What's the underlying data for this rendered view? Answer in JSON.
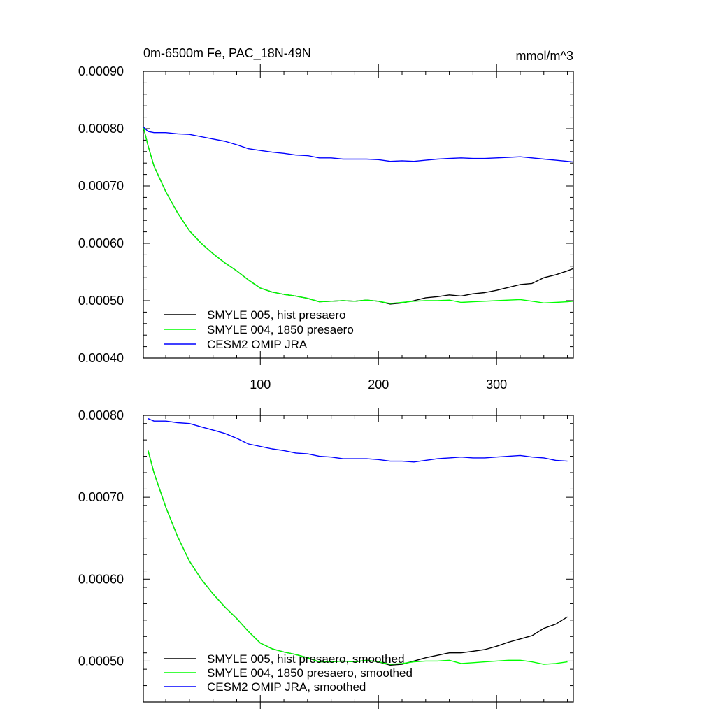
{
  "chart_data": [
    {
      "type": "line",
      "panel": "top",
      "title_left": "0m-6500m Fe, PAC_18N-49N",
      "title_right": "mmol/m^3",
      "xlim": [
        1,
        365
      ],
      "ylim": [
        0.0004,
        0.0009
      ],
      "y_ticks": [
        0.0004,
        0.0005,
        0.0006,
        0.0007,
        0.0008,
        0.0009
      ],
      "y_tick_labels": [
        "0.00040",
        "0.00050",
        "0.00060",
        "0.00070",
        "0.00080",
        "0.00090"
      ],
      "x_ticks": [
        100,
        200,
        300
      ],
      "x_tick_labels": [
        "100",
        "200",
        "300"
      ],
      "series": [
        {
          "name": "SMYLE 005, hist presaero",
          "color": "#000000",
          "x": [
            1,
            5,
            10,
            20,
            30,
            40,
            50,
            60,
            70,
            80,
            90,
            100,
            110,
            120,
            130,
            140,
            150,
            160,
            170,
            180,
            190,
            200,
            210,
            220,
            230,
            240,
            250,
            260,
            270,
            280,
            290,
            300,
            310,
            320,
            330,
            340,
            350,
            360,
            365
          ],
          "y": [
            0.000803,
            0.00077,
            0.000735,
            0.00069,
            0.000653,
            0.000622,
            0.0006,
            0.000582,
            0.000566,
            0.000552,
            0.000536,
            0.000522,
            0.000515,
            0.000511,
            0.000508,
            0.000504,
            0.000498,
            0.000499,
            0.0005,
            0.000499,
            0.000501,
            0.000499,
            0.000494,
            0.000496,
            0.0005,
            0.000505,
            0.000507,
            0.00051,
            0.000508,
            0.000512,
            0.000514,
            0.000518,
            0.000523,
            0.000528,
            0.00053,
            0.00054,
            0.000545,
            0.000552,
            0.000556
          ]
        },
        {
          "name": "SMYLE 004, 1850 presaero",
          "color": "#00ff00",
          "x": [
            1,
            5,
            10,
            20,
            30,
            40,
            50,
            60,
            70,
            80,
            90,
            100,
            110,
            120,
            130,
            140,
            150,
            160,
            170,
            180,
            190,
            200,
            210,
            220,
            230,
            240,
            250,
            260,
            270,
            280,
            290,
            300,
            310,
            320,
            330,
            340,
            350,
            360,
            365
          ],
          "y": [
            0.000803,
            0.00077,
            0.000735,
            0.00069,
            0.000653,
            0.000622,
            0.0006,
            0.000582,
            0.000566,
            0.000552,
            0.000536,
            0.000522,
            0.000515,
            0.000511,
            0.000508,
            0.000504,
            0.000498,
            0.000499,
            0.0005,
            0.000499,
            0.000501,
            0.000499,
            0.000495,
            0.000497,
            0.000499,
            0.0005,
            0.0005,
            0.000501,
            0.000497,
            0.000498,
            0.000499,
            0.0005,
            0.000501,
            0.000502,
            0.000499,
            0.000496,
            0.000497,
            0.000498,
            0.000499
          ]
        },
        {
          "name": "CESM2 OMIP JRA",
          "color": "#0000ff",
          "x": [
            1,
            5,
            10,
            20,
            30,
            40,
            50,
            60,
            70,
            80,
            90,
            100,
            110,
            120,
            130,
            140,
            150,
            160,
            170,
            180,
            190,
            200,
            210,
            220,
            230,
            240,
            250,
            260,
            270,
            280,
            290,
            300,
            310,
            320,
            330,
            340,
            350,
            360,
            365
          ],
          "y": [
            0.000803,
            0.000795,
            0.000793,
            0.000793,
            0.000791,
            0.00079,
            0.000786,
            0.000782,
            0.000778,
            0.000772,
            0.000765,
            0.000762,
            0.000759,
            0.000757,
            0.000754,
            0.000753,
            0.000749,
            0.000749,
            0.000747,
            0.000747,
            0.000747,
            0.000746,
            0.000743,
            0.000744,
            0.000743,
            0.000745,
            0.000747,
            0.000748,
            0.000749,
            0.000748,
            0.000748,
            0.000749,
            0.00075,
            0.000751,
            0.000749,
            0.000747,
            0.000745,
            0.000743,
            0.000742
          ]
        }
      ]
    },
    {
      "type": "line",
      "panel": "bottom",
      "xlim": [
        1,
        365
      ],
      "ylim": [
        0.00045,
        0.0008
      ],
      "y_ticks": [
        0.0005,
        0.0006,
        0.0007,
        0.0008
      ],
      "y_tick_labels": [
        "0.00050",
        "0.00060",
        "0.00070",
        "0.00080"
      ],
      "x_ticks": [
        100,
        200,
        300
      ],
      "series": [
        {
          "name": "SMYLE 005, hist presaero, smoothed",
          "color": "#000000",
          "x": [
            5,
            10,
            20,
            30,
            40,
            50,
            60,
            70,
            80,
            90,
            100,
            110,
            120,
            130,
            140,
            150,
            160,
            170,
            180,
            190,
            200,
            210,
            220,
            230,
            240,
            250,
            260,
            270,
            280,
            290,
            300,
            310,
            320,
            330,
            340,
            350,
            360
          ],
          "y": [
            0.000757,
            0.00073,
            0.000688,
            0.000652,
            0.000622,
            0.0006,
            0.000582,
            0.000566,
            0.000552,
            0.000536,
            0.000522,
            0.000515,
            0.000511,
            0.000508,
            0.000504,
            0.000499,
            0.000499,
            0.0005,
            0.000499,
            0.000501,
            0.000499,
            0.000495,
            0.000496,
            0.0005,
            0.000504,
            0.000507,
            0.00051,
            0.00051,
            0.000512,
            0.000514,
            0.000518,
            0.000523,
            0.000527,
            0.000531,
            0.00054,
            0.000545,
            0.000554
          ]
        },
        {
          "name": "SMYLE 004, 1850 presaero, smoothed",
          "color": "#00ff00",
          "x": [
            5,
            10,
            20,
            30,
            40,
            50,
            60,
            70,
            80,
            90,
            100,
            110,
            120,
            130,
            140,
            150,
            160,
            170,
            180,
            190,
            200,
            210,
            220,
            230,
            240,
            250,
            260,
            270,
            280,
            290,
            300,
            310,
            320,
            330,
            340,
            350,
            360
          ],
          "y": [
            0.000757,
            0.00073,
            0.000688,
            0.000652,
            0.000622,
            0.0006,
            0.000582,
            0.000566,
            0.000552,
            0.000536,
            0.000522,
            0.000515,
            0.000511,
            0.000508,
            0.000504,
            0.000499,
            0.000499,
            0.0005,
            0.000499,
            0.000501,
            0.000499,
            0.000496,
            0.000497,
            0.000499,
            0.0005,
            0.0005,
            0.000501,
            0.000497,
            0.000498,
            0.000499,
            0.0005,
            0.000501,
            0.000501,
            0.000499,
            0.000496,
            0.000497,
            0.000499
          ]
        },
        {
          "name": "CESM2 OMIP JRA, smoothed",
          "color": "#0000ff",
          "x": [
            5,
            10,
            20,
            30,
            40,
            50,
            60,
            70,
            80,
            90,
            100,
            110,
            120,
            130,
            140,
            150,
            160,
            170,
            180,
            190,
            200,
            210,
            220,
            230,
            240,
            250,
            260,
            270,
            280,
            290,
            300,
            310,
            320,
            330,
            340,
            350,
            360
          ],
          "y": [
            0.000796,
            0.000793,
            0.000793,
            0.000791,
            0.00079,
            0.000786,
            0.000782,
            0.000778,
            0.000772,
            0.000765,
            0.000762,
            0.000759,
            0.000757,
            0.000754,
            0.000753,
            0.00075,
            0.000749,
            0.000747,
            0.000747,
            0.000747,
            0.000746,
            0.000744,
            0.000744,
            0.000743,
            0.000745,
            0.000747,
            0.000748,
            0.000749,
            0.000748,
            0.000748,
            0.000749,
            0.00075,
            0.000751,
            0.000749,
            0.000748,
            0.000745,
            0.000744
          ]
        }
      ]
    }
  ]
}
